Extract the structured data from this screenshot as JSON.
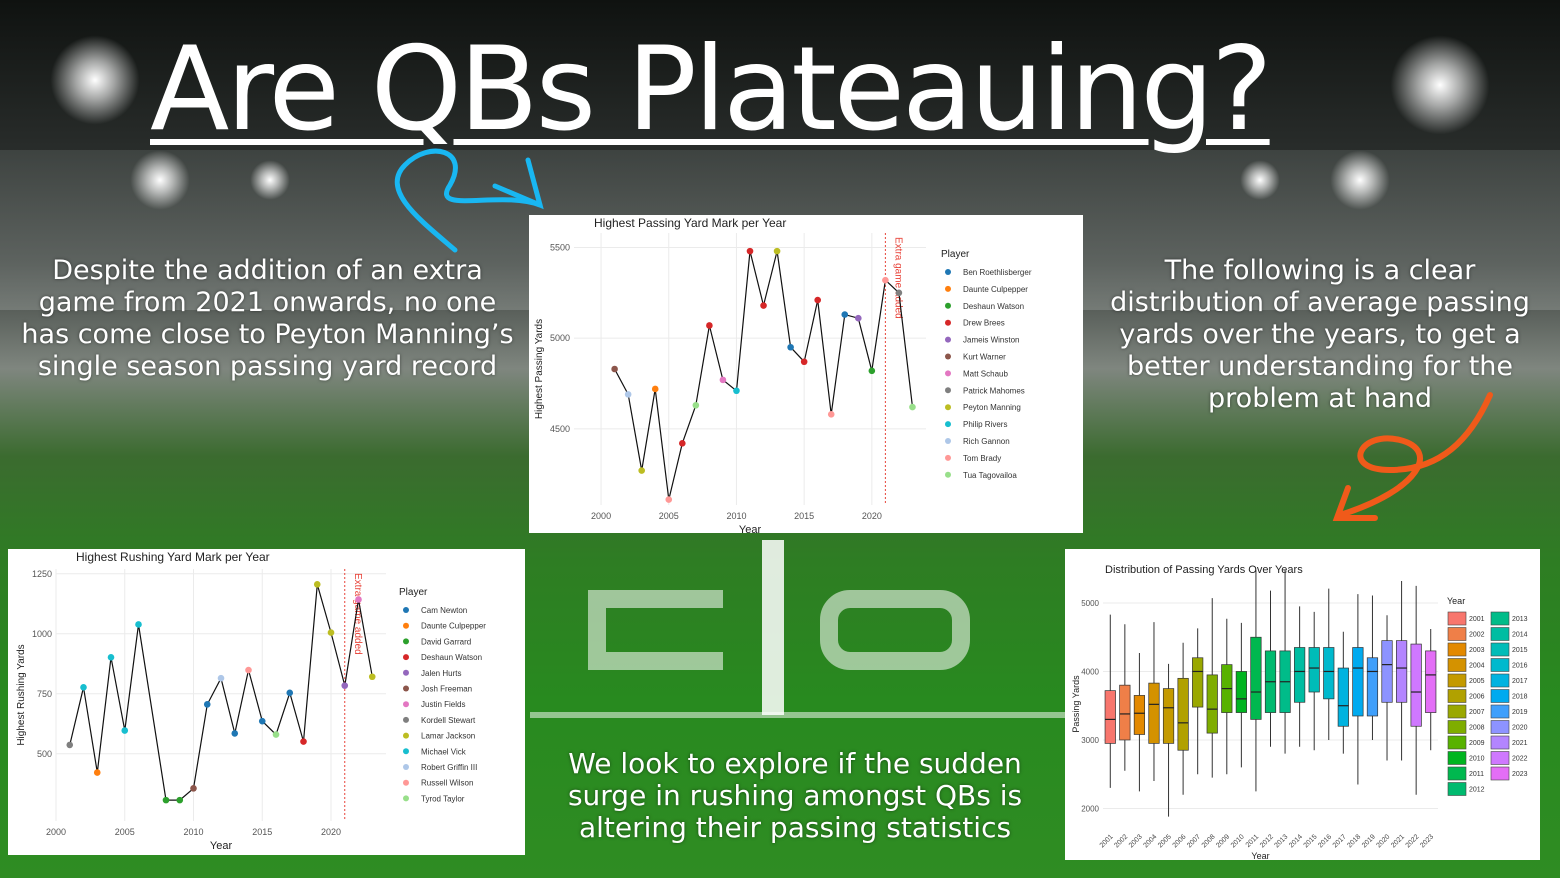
{
  "slide": {
    "title": "Are QBs Plateauing?",
    "left_caption": "Despite the addition of an extra game from 2021 onwards, no one has come close to Peyton Manning’s single season passing yard record",
    "right_caption": "The following is a  clear distribution of average passing yards over the years, to get a better understanding for the problem at hand",
    "bottom_caption": "We look to explore if the sudden surge in rushing amongst QBs is altering their passing statistics",
    "colors": {
      "arrow_left": "#19b7f2",
      "arrow_right": "#f05a1a",
      "text": "#ffffff"
    }
  },
  "chart_data": [
    {
      "type": "line",
      "title": "Highest Passing Yard Mark per Year",
      "xlabel": "Year",
      "ylabel": "Highest Passing Yards",
      "xlim": [
        1998,
        2024
      ],
      "ylim": [
        4080,
        5580
      ],
      "xticks": [
        2000,
        2005,
        2010,
        2015,
        2020
      ],
      "yticks": [
        4500,
        5000,
        5500
      ],
      "annotation": {
        "x": 2021,
        "label": "Extra game added"
      },
      "legend_title": "Player",
      "legend": [
        {
          "name": "Ben Roethlisberger",
          "color": "#1f77b4"
        },
        {
          "name": "Daunte Culpepper",
          "color": "#ff7f0e"
        },
        {
          "name": "Deshaun Watson",
          "color": "#2ca02c"
        },
        {
          "name": "Drew Brees",
          "color": "#d62728"
        },
        {
          "name": "Jameis Winston",
          "color": "#9467bd"
        },
        {
          "name": "Kurt Warner",
          "color": "#8c564b"
        },
        {
          "name": "Matt Schaub",
          "color": "#e377c2"
        },
        {
          "name": "Patrick Mahomes",
          "color": "#7f7f7f"
        },
        {
          "name": "Peyton Manning",
          "color": "#bcbd22"
        },
        {
          "name": "Philip Rivers",
          "color": "#17becf"
        },
        {
          "name": "Rich Gannon",
          "color": "#aec7e8"
        },
        {
          "name": "Tom Brady",
          "color": "#ff9896"
        },
        {
          "name": "Tua Tagovailoa",
          "color": "#98df8a"
        }
      ],
      "points": [
        {
          "x": 2001,
          "y": 4830,
          "color": "#8c564b"
        },
        {
          "x": 2002,
          "y": 4690,
          "color": "#aec7e8"
        },
        {
          "x": 2003,
          "y": 4270,
          "color": "#bcbd22"
        },
        {
          "x": 2004,
          "y": 4720,
          "color": "#ff7f0e"
        },
        {
          "x": 2005,
          "y": 4110,
          "color": "#ff9896"
        },
        {
          "x": 2006,
          "y": 4420,
          "color": "#d62728"
        },
        {
          "x": 2007,
          "y": 4630,
          "color": "#98df8a"
        },
        {
          "x": 2008,
          "y": 5070,
          "color": "#d62728"
        },
        {
          "x": 2009,
          "y": 4770,
          "color": "#e377c2"
        },
        {
          "x": 2010,
          "y": 4710,
          "color": "#17becf"
        },
        {
          "x": 2011,
          "y": 5480,
          "color": "#d62728"
        },
        {
          "x": 2012,
          "y": 5180,
          "color": "#d62728"
        },
        {
          "x": 2013,
          "y": 5480,
          "color": "#bcbd22"
        },
        {
          "x": 2014,
          "y": 4950,
          "color": "#1f77b4"
        },
        {
          "x": 2015,
          "y": 4870,
          "color": "#d62728"
        },
        {
          "x": 2016,
          "y": 5210,
          "color": "#d62728"
        },
        {
          "x": 2017,
          "y": 4580,
          "color": "#ff9896"
        },
        {
          "x": 2018,
          "y": 5130,
          "color": "#1f77b4"
        },
        {
          "x": 2019,
          "y": 5110,
          "color": "#9467bd"
        },
        {
          "x": 2020,
          "y": 4820,
          "color": "#2ca02c"
        },
        {
          "x": 2021,
          "y": 5320,
          "color": "#ff9896"
        },
        {
          "x": 2022,
          "y": 5250,
          "color": "#7f7f7f"
        },
        {
          "x": 2023,
          "y": 4620,
          "color": "#98df8a"
        }
      ]
    },
    {
      "type": "line",
      "title": "Highest Rushing Yard Mark per Year",
      "xlabel": "Year",
      "ylabel": "Highest Rushing Yards",
      "xlim": [
        2000,
        2024
      ],
      "ylim": [
        220,
        1270
      ],
      "xticks": [
        2000,
        2005,
        2010,
        2015,
        2020
      ],
      "yticks": [
        500,
        750,
        1000,
        1250
      ],
      "annotation": {
        "x": 2021,
        "label": "Extra game added"
      },
      "legend_title": "Player",
      "legend": [
        {
          "name": "Cam Newton",
          "color": "#1f77b4"
        },
        {
          "name": "Daunte Culpepper",
          "color": "#ff7f0e"
        },
        {
          "name": "David Garrard",
          "color": "#2ca02c"
        },
        {
          "name": "Deshaun Watson",
          "color": "#d62728"
        },
        {
          "name": "Jalen Hurts",
          "color": "#9467bd"
        },
        {
          "name": "Josh Freeman",
          "color": "#8c564b"
        },
        {
          "name": "Justin Fields",
          "color": "#e377c2"
        },
        {
          "name": "Kordell Stewart",
          "color": "#7f7f7f"
        },
        {
          "name": "Lamar Jackson",
          "color": "#bcbd22"
        },
        {
          "name": "Michael Vick",
          "color": "#17becf"
        },
        {
          "name": "Robert Griffin III",
          "color": "#aec7e8"
        },
        {
          "name": "Russell Wilson",
          "color": "#ff9896"
        },
        {
          "name": "Tyrod Taylor",
          "color": "#98df8a"
        }
      ],
      "points": [
        {
          "x": 2001,
          "y": 537,
          "color": "#7f7f7f"
        },
        {
          "x": 2002,
          "y": 777,
          "color": "#17becf"
        },
        {
          "x": 2003,
          "y": 422,
          "color": "#ff7f0e"
        },
        {
          "x": 2004,
          "y": 902,
          "color": "#17becf"
        },
        {
          "x": 2005,
          "y": 597,
          "color": "#17becf"
        },
        {
          "x": 2006,
          "y": 1039,
          "color": "#17becf"
        },
        {
          "x": 2008,
          "y": 307,
          "color": "#2ca02c"
        },
        {
          "x": 2009,
          "y": 307,
          "color": "#2ca02c"
        },
        {
          "x": 2010,
          "y": 356,
          "color": "#8c564b"
        },
        {
          "x": 2011,
          "y": 706,
          "color": "#1f77b4"
        },
        {
          "x": 2012,
          "y": 815,
          "color": "#aec7e8"
        },
        {
          "x": 2013,
          "y": 585,
          "color": "#1f77b4"
        },
        {
          "x": 2014,
          "y": 849,
          "color": "#ff9896"
        },
        {
          "x": 2015,
          "y": 636,
          "color": "#1f77b4"
        },
        {
          "x": 2016,
          "y": 580,
          "color": "#98df8a"
        },
        {
          "x": 2017,
          "y": 754,
          "color": "#1f77b4"
        },
        {
          "x": 2018,
          "y": 551,
          "color": "#d62728"
        },
        {
          "x": 2019,
          "y": 1206,
          "color": "#bcbd22"
        },
        {
          "x": 2020,
          "y": 1005,
          "color": "#bcbd22"
        },
        {
          "x": 2021,
          "y": 784,
          "color": "#9467bd"
        },
        {
          "x": 2022,
          "y": 1143,
          "color": "#e377c2"
        },
        {
          "x": 2023,
          "y": 821,
          "color": "#bcbd22"
        }
      ]
    },
    {
      "type": "boxplot",
      "title": "Distribution of Passing Yards Over Years",
      "xlabel": "Year",
      "ylabel": "Passing Yards",
      "ylim": [
        1700,
        5350
      ],
      "yticks": [
        2000,
        3000,
        4000,
        5000
      ],
      "legend_title": "Year",
      "series": [
        {
          "year": "2001",
          "min": 2300,
          "q1": 2950,
          "median": 3300,
          "q3": 3720,
          "max": 4830,
          "color": "#f8766d"
        },
        {
          "year": "2002",
          "min": 2550,
          "q1": 3000,
          "median": 3380,
          "q3": 3800,
          "max": 4690,
          "color": "#ef7f48"
        },
        {
          "year": "2003",
          "min": 2250,
          "q1": 3080,
          "median": 3390,
          "q3": 3650,
          "max": 4270,
          "color": "#e38900"
        },
        {
          "year": "2004",
          "min": 2400,
          "q1": 2950,
          "median": 3520,
          "q3": 3830,
          "max": 4720,
          "color": "#d49200"
        },
        {
          "year": "2005",
          "min": 1880,
          "q1": 2950,
          "median": 3470,
          "q3": 3750,
          "max": 4110,
          "color": "#c49a00"
        },
        {
          "year": "2006",
          "min": 2200,
          "q1": 2850,
          "median": 3250,
          "q3": 3900,
          "max": 4420,
          "color": "#b1a100"
        },
        {
          "year": "2007",
          "min": 2500,
          "q1": 3480,
          "median": 4000,
          "q3": 4200,
          "max": 4630,
          "color": "#9aa800"
        },
        {
          "year": "2008",
          "min": 2450,
          "q1": 3100,
          "median": 3450,
          "q3": 3950,
          "max": 5070,
          "color": "#7fad00"
        },
        {
          "year": "2009",
          "min": 2500,
          "q1": 3400,
          "median": 3750,
          "q3": 4100,
          "max": 4770,
          "color": "#58b200"
        },
        {
          "year": "2010",
          "min": 2600,
          "q1": 3400,
          "median": 3600,
          "q3": 4000,
          "max": 4710,
          "color": "#00b520"
        },
        {
          "year": "2011",
          "min": 2250,
          "q1": 3300,
          "median": 3700,
          "q3": 4500,
          "max": 5480,
          "color": "#00b84f"
        },
        {
          "year": "2012",
          "min": 2900,
          "q1": 3400,
          "median": 3850,
          "q3": 4300,
          "max": 5180,
          "color": "#00ba6f"
        },
        {
          "year": "2013",
          "min": 2800,
          "q1": 3400,
          "median": 3850,
          "q3": 4300,
          "max": 5480,
          "color": "#00bc89"
        },
        {
          "year": "2014",
          "min": 2900,
          "q1": 3550,
          "median": 4000,
          "q3": 4350,
          "max": 4950,
          "color": "#00bda2"
        },
        {
          "year": "2015",
          "min": 2850,
          "q1": 3700,
          "median": 4050,
          "q3": 4350,
          "max": 4870,
          "color": "#00bcb8"
        },
        {
          "year": "2016",
          "min": 3000,
          "q1": 3600,
          "median": 4000,
          "q3": 4350,
          "max": 5210,
          "color": "#00b9cd"
        },
        {
          "year": "2017",
          "min": 2800,
          "q1": 3200,
          "median": 3500,
          "q3": 4050,
          "max": 4580,
          "color": "#00b3e0"
        },
        {
          "year": "2018",
          "min": 2350,
          "q1": 3350,
          "median": 4050,
          "q3": 4350,
          "max": 5130,
          "color": "#00aaef"
        },
        {
          "year": "2019",
          "min": 3000,
          "q1": 3350,
          "median": 4000,
          "q3": 4200,
          "max": 5110,
          "color": "#3f9ffb"
        },
        {
          "year": "2020",
          "min": 2700,
          "q1": 3550,
          "median": 4100,
          "q3": 4450,
          "max": 4820,
          "color": "#8d93ff"
        },
        {
          "year": "2021",
          "min": 2700,
          "q1": 3550,
          "median": 4050,
          "q3": 4450,
          "max": 5320,
          "color": "#b385ff"
        },
        {
          "year": "2022",
          "min": 2200,
          "q1": 3200,
          "median": 3700,
          "q3": 4400,
          "max": 5250,
          "color": "#cf78ff"
        },
        {
          "year": "2023",
          "min": 2850,
          "q1": 3400,
          "median": 3950,
          "q3": 4300,
          "max": 4620,
          "color": "#e36ef6"
        }
      ]
    }
  ]
}
